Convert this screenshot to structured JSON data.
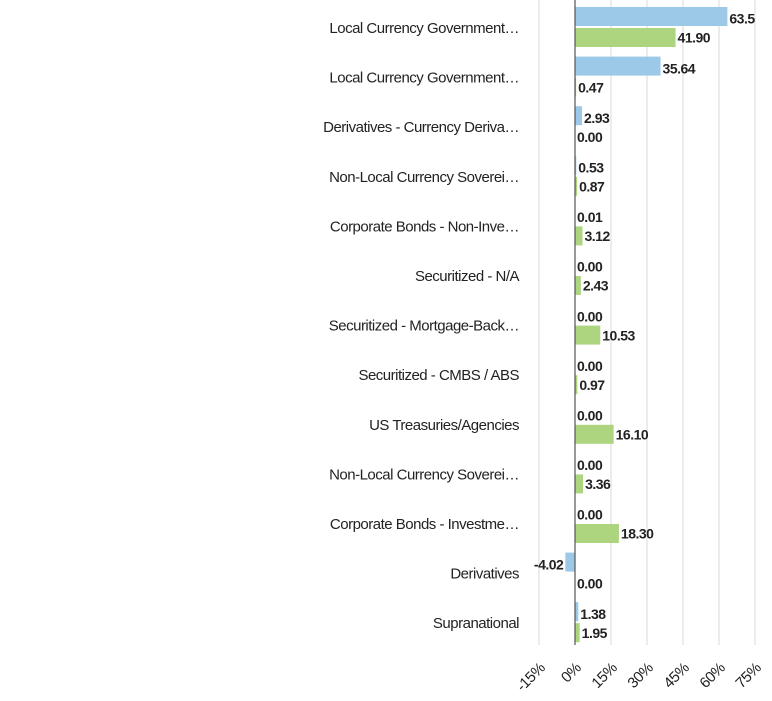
{
  "chart_data": {
    "type": "bar",
    "orientation": "horizontal",
    "categories": [
      "Local Currency Government…",
      "Local Currency Government…",
      "Derivatives - Currency Deriva…",
      "Non-Local Currency Soverei…",
      "Corporate Bonds - Non-Inve…",
      "Securitized - N/A",
      "Securitized - Mortgage-Back…",
      "Securitized - CMBS / ABS",
      "US Treasuries/Agencies",
      "Non-Local Currency Soverei…",
      "Corporate Bonds - Investme…",
      "Derivatives",
      "Supranational"
    ],
    "series": [
      {
        "color": "#9dc9e8",
        "values": [
          63.5,
          35.64,
          2.93,
          0.53,
          0.01,
          0,
          0,
          0,
          0,
          0,
          0,
          -4.02,
          1.38
        ],
        "value_labels": [
          "63.5",
          "35.64",
          "2.93",
          "0.53",
          "0.01",
          "0.00",
          "0.00",
          "0.00",
          "0.00",
          "0.00",
          "0.00",
          "-4.02",
          "1.38"
        ]
      },
      {
        "color": "#add47f",
        "values": [
          41.9,
          0.47,
          0,
          0.87,
          3.12,
          2.43,
          10.53,
          0.97,
          16.1,
          3.36,
          18.3,
          0,
          1.95
        ],
        "value_labels": [
          "41.90",
          "0.47",
          "0.00",
          "0.87",
          "3.12",
          "2.43",
          "10.53",
          "0.97",
          "16.10",
          "3.36",
          "18.30",
          "0.00",
          "1.95"
        ]
      }
    ],
    "xlim": [
      -15,
      75
    ],
    "xticks": [
      {
        "value": -15,
        "label": "-15%"
      },
      {
        "value": 0,
        "label": "0%"
      },
      {
        "value": 15,
        "label": "15%"
      },
      {
        "value": 30,
        "label": "30%"
      },
      {
        "value": 45,
        "label": "45%"
      },
      {
        "value": 60,
        "label": "60%"
      },
      {
        "value": 75,
        "label": "75%"
      }
    ],
    "grid": true
  }
}
